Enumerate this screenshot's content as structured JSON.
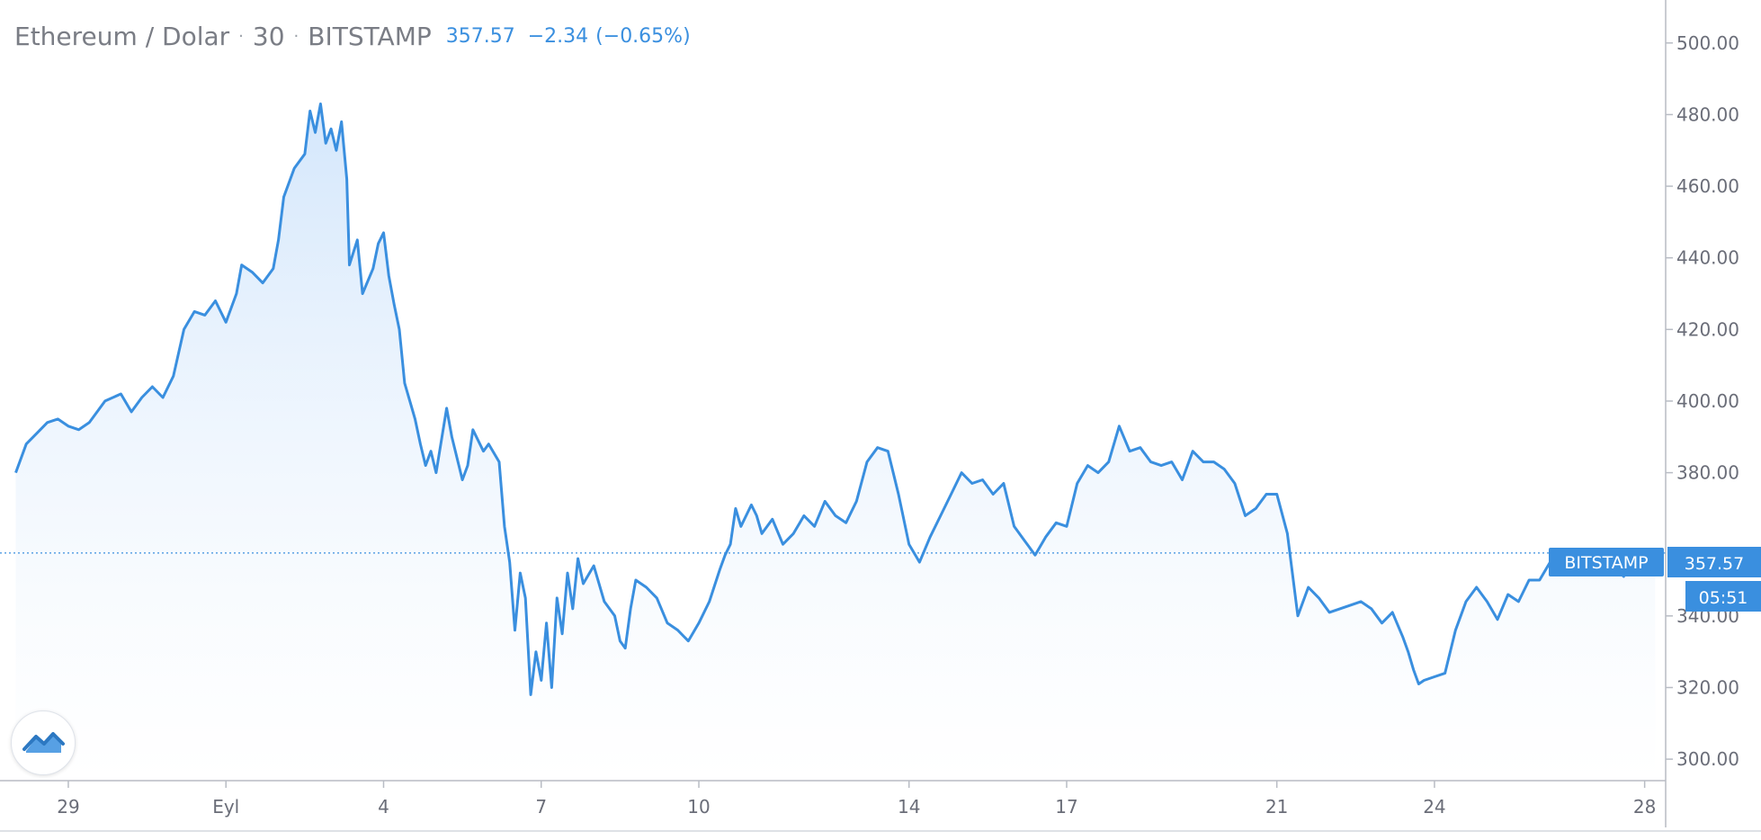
{
  "legend": {
    "symbol": "Ethereum / Dolar",
    "interval": "30",
    "exchange": "BITSTAMP",
    "price": "357.57",
    "change": "−2.34",
    "change_pct": "(−0.65%)"
  },
  "price_labels": {
    "exchange_tag": "BITSTAMP",
    "last_price": "357.57",
    "countdown": "05:51"
  },
  "colors": {
    "line": "#3a8fdf",
    "area_top": "#cfe4fb",
    "area_bottom": "#ffffff",
    "axis_text": "#6a6d78",
    "label_bg": "#3a8fdf",
    "label_text": "#ffffff",
    "axis_line": "#b8bcc4"
  },
  "chart_data": {
    "type": "area",
    "title": "Ethereum / Dolar · 30 · BITSTAMP",
    "x_unit": "day index (0 = 28 Aug)",
    "xlim": [
      -0.3,
      31.4
    ],
    "ylim": [
      294,
      512
    ],
    "x_ticks": [
      {
        "value": 1,
        "label": "29"
      },
      {
        "value": 4,
        "label": "Eyl"
      },
      {
        "value": 7,
        "label": "4"
      },
      {
        "value": 10,
        "label": "7"
      },
      {
        "value": 13,
        "label": "10"
      },
      {
        "value": 17,
        "label": "14"
      },
      {
        "value": 20,
        "label": "17"
      },
      {
        "value": 24,
        "label": "21"
      },
      {
        "value": 27,
        "label": "24"
      },
      {
        "value": 31,
        "label": "28"
      }
    ],
    "y_ticks": [
      {
        "value": 500,
        "label": "500.00"
      },
      {
        "value": 480,
        "label": "480.00"
      },
      {
        "value": 460,
        "label": "460.00"
      },
      {
        "value": 440,
        "label": "440.00"
      },
      {
        "value": 420,
        "label": "420.00"
      },
      {
        "value": 400,
        "label": "400.00"
      },
      {
        "value": 380,
        "label": "380.00"
      },
      {
        "value": 340,
        "label": "340.00"
      },
      {
        "value": 320,
        "label": "320.00"
      },
      {
        "value": 300,
        "label": "300.00"
      }
    ],
    "last_price": 357.57,
    "series": [
      {
        "points": [
          [
            0.0,
            380
          ],
          [
            0.2,
            388
          ],
          [
            0.4,
            391
          ],
          [
            0.6,
            394
          ],
          [
            0.8,
            395
          ],
          [
            1.0,
            393
          ],
          [
            1.2,
            392
          ],
          [
            1.4,
            394
          ],
          [
            1.7,
            400
          ],
          [
            2.0,
            402
          ],
          [
            2.2,
            397
          ],
          [
            2.4,
            401
          ],
          [
            2.6,
            404
          ],
          [
            2.8,
            401
          ],
          [
            3.0,
            407
          ],
          [
            3.2,
            420
          ],
          [
            3.4,
            425
          ],
          [
            3.6,
            424
          ],
          [
            3.8,
            428
          ],
          [
            4.0,
            422
          ],
          [
            4.2,
            430
          ],
          [
            4.3,
            438
          ],
          [
            4.5,
            436
          ],
          [
            4.7,
            433
          ],
          [
            4.9,
            437
          ],
          [
            5.0,
            445
          ],
          [
            5.1,
            457
          ],
          [
            5.3,
            465
          ],
          [
            5.5,
            469
          ],
          [
            5.6,
            481
          ],
          [
            5.7,
            475
          ],
          [
            5.8,
            483
          ],
          [
            5.9,
            472
          ],
          [
            6.0,
            476
          ],
          [
            6.1,
            470
          ],
          [
            6.2,
            478
          ],
          [
            6.3,
            462
          ],
          [
            6.35,
            438
          ],
          [
            6.5,
            445
          ],
          [
            6.6,
            430
          ],
          [
            6.8,
            437
          ],
          [
            6.9,
            444
          ],
          [
            7.0,
            447
          ],
          [
            7.1,
            435
          ],
          [
            7.2,
            427
          ],
          [
            7.3,
            420
          ],
          [
            7.4,
            405
          ],
          [
            7.5,
            400
          ],
          [
            7.6,
            395
          ],
          [
            7.7,
            388
          ],
          [
            7.8,
            382
          ],
          [
            7.9,
            386
          ],
          [
            8.0,
            380
          ],
          [
            8.2,
            398
          ],
          [
            8.3,
            390
          ],
          [
            8.5,
            378
          ],
          [
            8.6,
            382
          ],
          [
            8.7,
            392
          ],
          [
            8.9,
            386
          ],
          [
            9.0,
            388
          ],
          [
            9.2,
            383
          ],
          [
            9.3,
            365
          ],
          [
            9.4,
            355
          ],
          [
            9.5,
            336
          ],
          [
            9.6,
            352
          ],
          [
            9.7,
            345
          ],
          [
            9.8,
            318
          ],
          [
            9.9,
            330
          ],
          [
            10.0,
            322
          ],
          [
            10.1,
            338
          ],
          [
            10.2,
            320
          ],
          [
            10.3,
            345
          ],
          [
            10.4,
            335
          ],
          [
            10.5,
            352
          ],
          [
            10.6,
            342
          ],
          [
            10.7,
            356
          ],
          [
            10.8,
            349
          ],
          [
            11.0,
            354
          ],
          [
            11.2,
            344
          ],
          [
            11.4,
            340
          ],
          [
            11.5,
            333
          ],
          [
            11.6,
            331
          ],
          [
            11.7,
            342
          ],
          [
            11.8,
            350
          ],
          [
            12.0,
            348
          ],
          [
            12.2,
            345
          ],
          [
            12.4,
            338
          ],
          [
            12.6,
            336
          ],
          [
            12.8,
            333
          ],
          [
            13.0,
            338
          ],
          [
            13.2,
            344
          ],
          [
            13.4,
            353
          ],
          [
            13.5,
            357
          ],
          [
            13.6,
            360
          ],
          [
            13.7,
            370
          ],
          [
            13.8,
            365
          ],
          [
            14.0,
            371
          ],
          [
            14.1,
            368
          ],
          [
            14.2,
            363
          ],
          [
            14.4,
            367
          ],
          [
            14.6,
            360
          ],
          [
            14.8,
            363
          ],
          [
            15.0,
            368
          ],
          [
            15.2,
            365
          ],
          [
            15.4,
            372
          ],
          [
            15.6,
            368
          ],
          [
            15.8,
            366
          ],
          [
            16.0,
            372
          ],
          [
            16.2,
            383
          ],
          [
            16.4,
            387
          ],
          [
            16.6,
            386
          ],
          [
            16.8,
            374
          ],
          [
            17.0,
            360
          ],
          [
            17.2,
            355
          ],
          [
            17.4,
            362
          ],
          [
            17.6,
            368
          ],
          [
            17.8,
            374
          ],
          [
            18.0,
            380
          ],
          [
            18.2,
            377
          ],
          [
            18.4,
            378
          ],
          [
            18.6,
            374
          ],
          [
            18.8,
            377
          ],
          [
            19.0,
            365
          ],
          [
            19.2,
            361
          ],
          [
            19.4,
            357
          ],
          [
            19.6,
            362
          ],
          [
            19.8,
            366
          ],
          [
            20.0,
            365
          ],
          [
            20.2,
            377
          ],
          [
            20.4,
            382
          ],
          [
            20.6,
            380
          ],
          [
            20.8,
            383
          ],
          [
            21.0,
            393
          ],
          [
            21.2,
            386
          ],
          [
            21.4,
            387
          ],
          [
            21.6,
            383
          ],
          [
            21.8,
            382
          ],
          [
            22.0,
            383
          ],
          [
            22.2,
            378
          ],
          [
            22.4,
            386
          ],
          [
            22.6,
            383
          ],
          [
            22.8,
            383
          ],
          [
            23.0,
            381
          ],
          [
            23.2,
            377
          ],
          [
            23.4,
            368
          ],
          [
            23.6,
            370
          ],
          [
            23.8,
            374
          ],
          [
            24.0,
            374
          ],
          [
            24.2,
            363
          ],
          [
            24.4,
            340
          ],
          [
            24.6,
            348
          ],
          [
            24.8,
            345
          ],
          [
            25.0,
            341
          ],
          [
            25.2,
            342
          ],
          [
            25.4,
            343
          ],
          [
            25.6,
            344
          ],
          [
            25.8,
            342
          ],
          [
            26.0,
            338
          ],
          [
            26.2,
            341
          ],
          [
            26.4,
            334
          ],
          [
            26.5,
            330
          ],
          [
            26.6,
            325
          ],
          [
            26.7,
            321
          ],
          [
            26.8,
            322
          ],
          [
            27.0,
            323
          ],
          [
            27.2,
            324
          ],
          [
            27.4,
            336
          ],
          [
            27.6,
            344
          ],
          [
            27.8,
            348
          ],
          [
            28.0,
            344
          ],
          [
            28.2,
            339
          ],
          [
            28.4,
            346
          ],
          [
            28.6,
            344
          ],
          [
            28.8,
            350
          ],
          [
            29.0,
            350
          ],
          [
            29.2,
            355
          ],
          [
            29.4,
            353
          ],
          [
            29.6,
            352
          ],
          [
            29.8,
            356
          ],
          [
            30.0,
            353
          ],
          [
            30.2,
            355
          ],
          [
            30.4,
            354
          ],
          [
            30.6,
            351
          ],
          [
            30.8,
            356
          ],
          [
            31.0,
            358
          ],
          [
            31.2,
            358
          ]
        ]
      }
    ]
  }
}
